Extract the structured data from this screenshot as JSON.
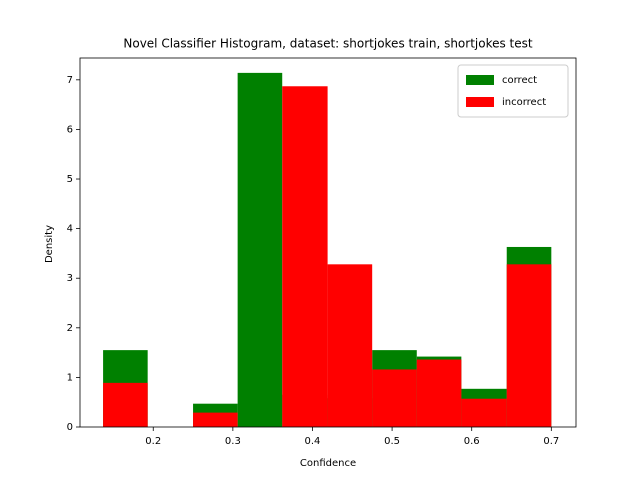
{
  "chart_data": {
    "type": "histogram",
    "title": "Novel Classifier Histogram, dataset: shortjokes train, shortjokes test",
    "x_label": "Confidence",
    "y_label": "Density",
    "bins": [
      0.137,
      0.193,
      0.25,
      0.306,
      0.362,
      0.419,
      0.475,
      0.531,
      0.587,
      0.644,
      0.7
    ],
    "series": [
      {
        "name": "correct",
        "color": "#008000",
        "values": [
          1.55,
          0,
          0.47,
          7.14,
          0.65,
          0.58,
          1.55,
          1.42,
          0.77,
          3.63
        ]
      },
      {
        "name": "incorrect",
        "color": "#ff0000",
        "values": [
          0.89,
          0,
          0.29,
          0,
          6.87,
          3.28,
          1.16,
          1.36,
          0.57,
          3.28
        ]
      }
    ],
    "xlim": [
      0.108,
      0.731
    ],
    "ylim": [
      0,
      7.44
    ],
    "xticks": [
      0.2,
      0.3,
      0.4,
      0.5,
      0.6,
      0.7
    ],
    "yticks": [
      0,
      1,
      2,
      3,
      4,
      5,
      6,
      7
    ],
    "legend": "upper right",
    "grid": false
  }
}
